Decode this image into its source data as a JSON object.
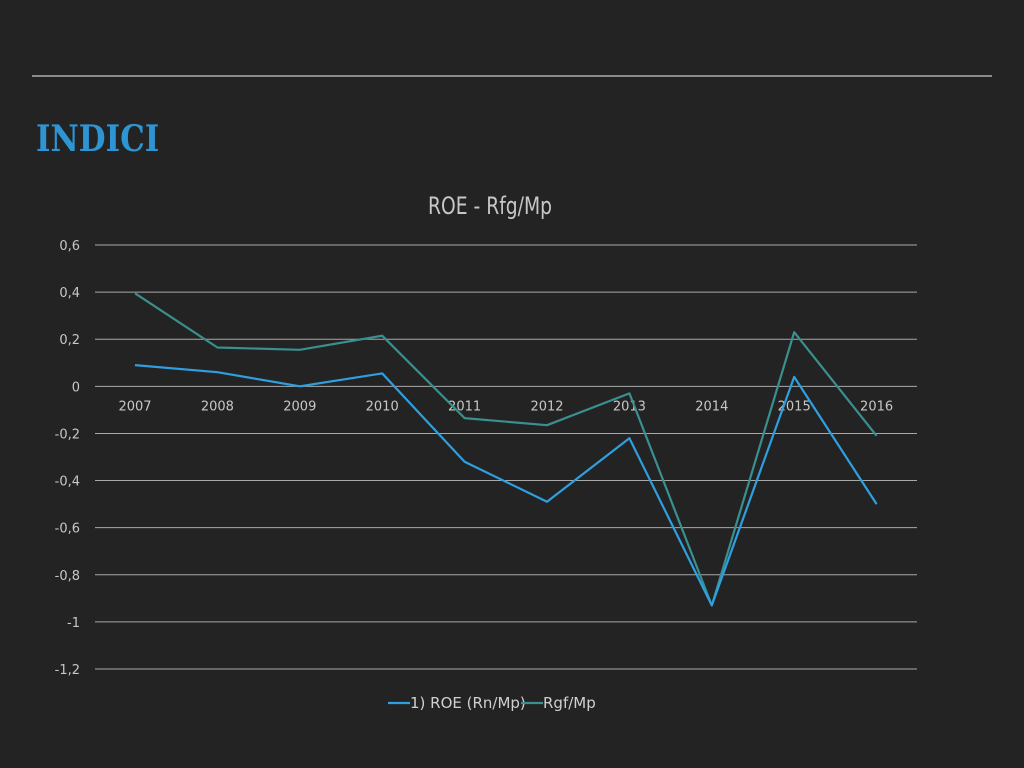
{
  "slide": {
    "title": "INDICI"
  },
  "colors": {
    "background": "#232323",
    "title": "#2d95d3",
    "grid": "#a8a8a8",
    "text": "#c7c7c7",
    "series_roe": "#2e9fe0",
    "series_rgf": "#3a8f8f"
  },
  "chart_data": {
    "type": "line",
    "title": "ROE - Rfg/Mp",
    "xlabel": "",
    "ylabel": "",
    "categories": [
      "2007",
      "2008",
      "2009",
      "2010",
      "2011",
      "2012",
      "2013",
      "2014",
      "2015",
      "2016"
    ],
    "y_ticks": [
      "0,6",
      "0,4",
      "0,2",
      "0",
      "-0,2",
      "-0,4",
      "-0,6",
      "-0,8",
      "-1",
      "-1,2"
    ],
    "ylim": [
      -1.2,
      0.6
    ],
    "grid": true,
    "legend_position": "bottom",
    "series": [
      {
        "name": "1) ROE (Rn/Mp)",
        "values": [
          0.09,
          0.06,
          0.0,
          0.055,
          -0.32,
          -0.49,
          -0.22,
          -0.93,
          0.04,
          -0.5
        ]
      },
      {
        "name": "Rgf/Mp",
        "values": [
          0.395,
          0.165,
          0.155,
          0.215,
          -0.135,
          -0.165,
          -0.03,
          -0.93,
          0.23,
          -0.21
        ]
      }
    ]
  }
}
